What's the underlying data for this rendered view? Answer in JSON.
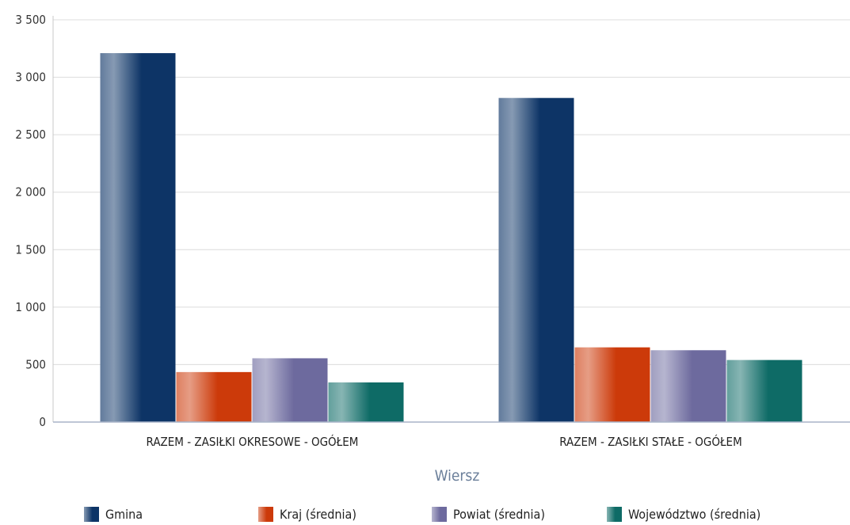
{
  "chart_data": {
    "type": "bar",
    "categories": [
      "RAZEM -  ZASIŁKI OKRESOWE - OGÓŁEM",
      "RAZEM -  ZASIŁKI STAŁE - OGÓŁEM"
    ],
    "series": [
      {
        "name": "Gmina",
        "values": [
          3210,
          2820
        ],
        "color": "#0d3466"
      },
      {
        "name": "Kraj (średnia)",
        "values": [
          435,
          650
        ],
        "color": "#cc3a0a"
      },
      {
        "name": "Powiat (średnia)",
        "values": [
          555,
          625
        ],
        "color": "#6d6a9e"
      },
      {
        "name": "Województwo (średnia)",
        "values": [
          345,
          540
        ],
        "color": "#0e6b66"
      }
    ],
    "yticks": [
      "0",
      "500",
      "1 000",
      "1 500",
      "2 000",
      "2 500",
      "3 000",
      "3 500"
    ],
    "ylim": [
      0,
      3500
    ],
    "xlabel": "Wiersz",
    "ylabel": "",
    "grid": true,
    "legend_position": "bottom"
  }
}
